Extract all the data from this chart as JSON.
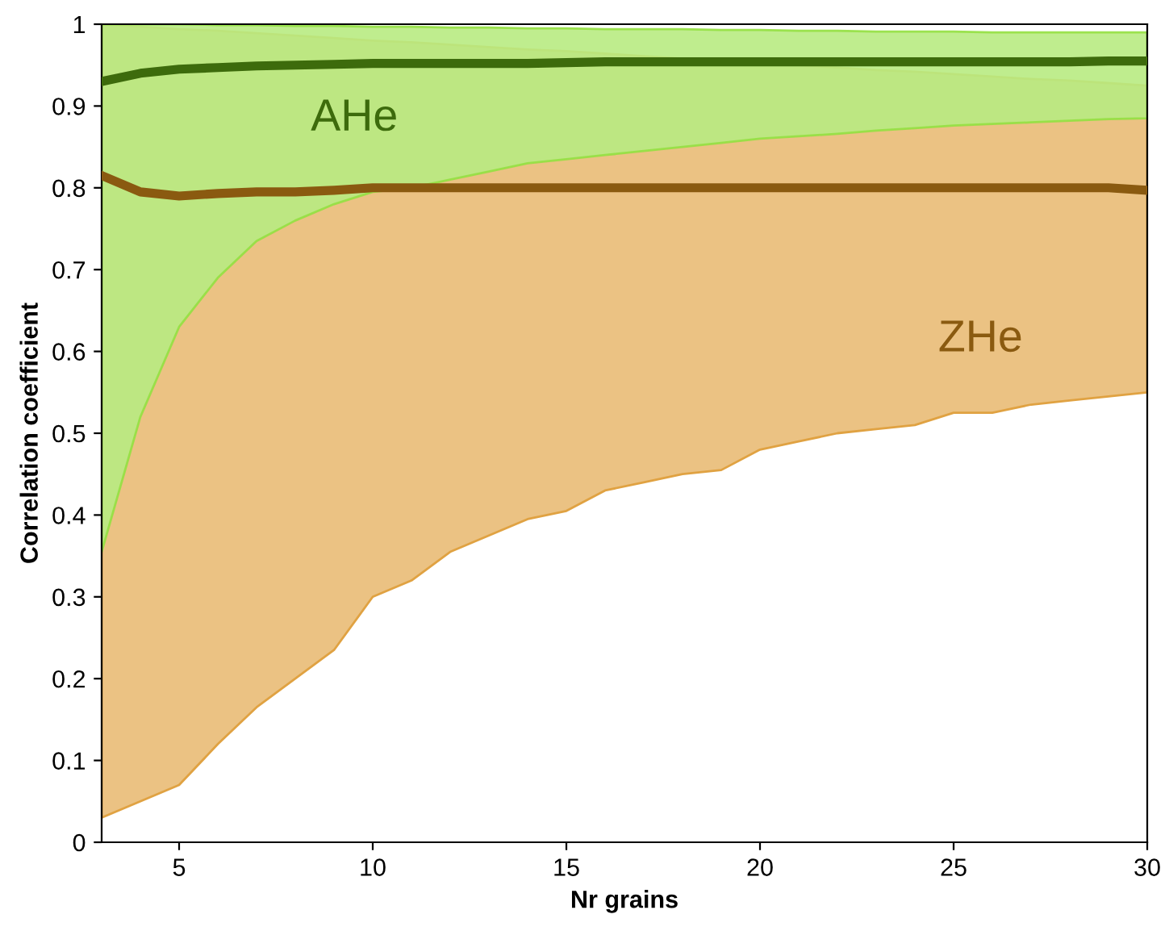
{
  "chart_data": {
    "type": "line",
    "xlabel": "Nr grains",
    "ylabel": "Correlation coefficient",
    "x": [
      3,
      4,
      5,
      6,
      7,
      8,
      9,
      10,
      11,
      12,
      13,
      14,
      15,
      16,
      17,
      18,
      19,
      20,
      21,
      22,
      23,
      24,
      25,
      26,
      27,
      28,
      29,
      30
    ],
    "series": [
      {
        "name": "ZHe",
        "color": "#8a5a10",
        "values": [
          0.815,
          0.795,
          0.79,
          0.793,
          0.795,
          0.795,
          0.797,
          0.8,
          0.8,
          0.8,
          0.8,
          0.8,
          0.8,
          0.8,
          0.8,
          0.8,
          0.8,
          0.8,
          0.8,
          0.8,
          0.8,
          0.8,
          0.8,
          0.8,
          0.8,
          0.8,
          0.8,
          0.797
        ],
        "lower": [
          0.03,
          0.05,
          0.07,
          0.12,
          0.165,
          0.2,
          0.235,
          0.3,
          0.32,
          0.355,
          0.375,
          0.395,
          0.405,
          0.43,
          0.44,
          0.45,
          0.455,
          0.48,
          0.49,
          0.5,
          0.505,
          0.51,
          0.525,
          0.525,
          0.535,
          0.54,
          0.545,
          0.55
        ],
        "upper": [
          1.0,
          0.997,
          0.994,
          0.992,
          0.989,
          0.986,
          0.983,
          0.98,
          0.978,
          0.975,
          0.972,
          0.969,
          0.967,
          0.964,
          0.961,
          0.958,
          0.955,
          0.953,
          0.95,
          0.947,
          0.944,
          0.942,
          0.939,
          0.936,
          0.933,
          0.931,
          0.928,
          0.925
        ]
      },
      {
        "name": "AHe",
        "color": "#3d6b0c",
        "values": [
          0.93,
          0.94,
          0.945,
          0.947,
          0.949,
          0.95,
          0.951,
          0.952,
          0.952,
          0.952,
          0.952,
          0.952,
          0.953,
          0.954,
          0.954,
          0.954,
          0.954,
          0.954,
          0.954,
          0.954,
          0.954,
          0.954,
          0.954,
          0.954,
          0.954,
          0.954,
          0.955,
          0.955
        ],
        "lower": [
          0.355,
          0.52,
          0.63,
          0.69,
          0.735,
          0.76,
          0.78,
          0.795,
          0.8,
          0.81,
          0.82,
          0.83,
          0.835,
          0.84,
          0.845,
          0.85,
          0.855,
          0.86,
          0.863,
          0.866,
          0.87,
          0.873,
          0.876,
          0.878,
          0.88,
          0.882,
          0.884,
          0.885
        ],
        "upper": [
          1.0,
          1.0,
          1.0,
          0.999,
          0.999,
          0.998,
          0.998,
          0.997,
          0.997,
          0.996,
          0.996,
          0.995,
          0.995,
          0.994,
          0.994,
          0.994,
          0.993,
          0.993,
          0.992,
          0.992,
          0.991,
          0.991,
          0.991,
          0.99,
          0.99,
          0.99,
          0.99,
          0.99
        ]
      }
    ],
    "xlim": [
      3,
      30
    ],
    "ylim": [
      0,
      1
    ],
    "xticks": [
      5,
      10,
      15,
      20,
      25,
      30
    ],
    "yticks": [
      0,
      0.1,
      0.2,
      0.3,
      0.4,
      0.5,
      0.6,
      0.7,
      0.8,
      0.9,
      1
    ],
    "grid": false,
    "legend": false,
    "marker": "none",
    "line_style": "solid"
  }
}
